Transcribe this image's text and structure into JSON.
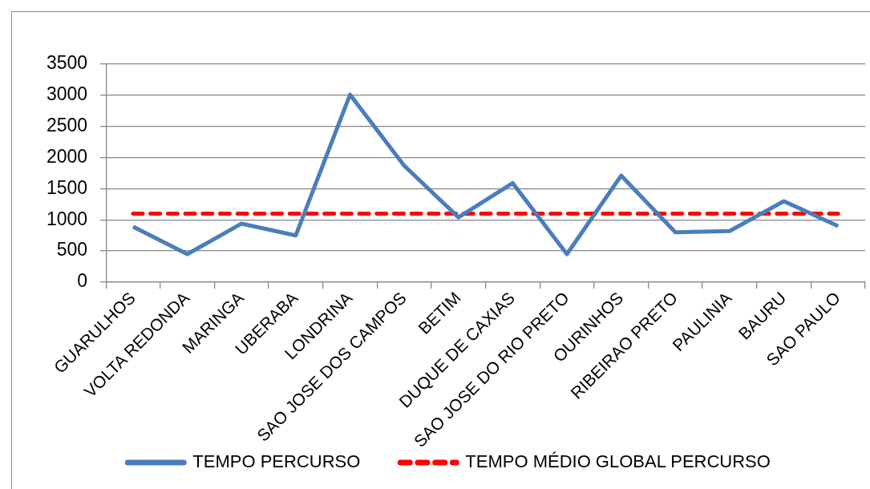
{
  "chart_data": {
    "type": "line",
    "categories": [
      "GUARULHOS",
      "VOLTA REDONDA",
      "MARINGA",
      "UBERABA",
      "LONDRINA",
      "SAO JOSE DOS CAMPOS",
      "BETIM",
      "DUQUE DE CAXIAS",
      "SAO JOSE DO RIO PRETO",
      "OURINHOS",
      "RIBEIRAO PRETO",
      "PAULINIA",
      "BAURU",
      "SAO PAULO"
    ],
    "series": [
      {
        "name": "TEMPO PERCURSO",
        "color": "#4a7ebb",
        "values": [
          890,
          450,
          940,
          750,
          3010,
          1870,
          1040,
          1590,
          450,
          1710,
          800,
          820,
          1300,
          900
        ]
      },
      {
        "name": "TEMPO MÉDIO GLOBAL PERCURSO",
        "color": "#ff0000",
        "line_style": "dashed",
        "values": [
          1100,
          1100,
          1100,
          1100,
          1100,
          1100,
          1100,
          1100,
          1100,
          1100,
          1100,
          1100,
          1100,
          1100
        ]
      }
    ],
    "ylim": [
      0,
      3500
    ],
    "yticks": [
      0,
      500,
      1000,
      1500,
      2000,
      2500,
      3000,
      3500
    ],
    "grid": "y",
    "legend": "bottom",
    "marker": "none",
    "line_style": "solid"
  }
}
